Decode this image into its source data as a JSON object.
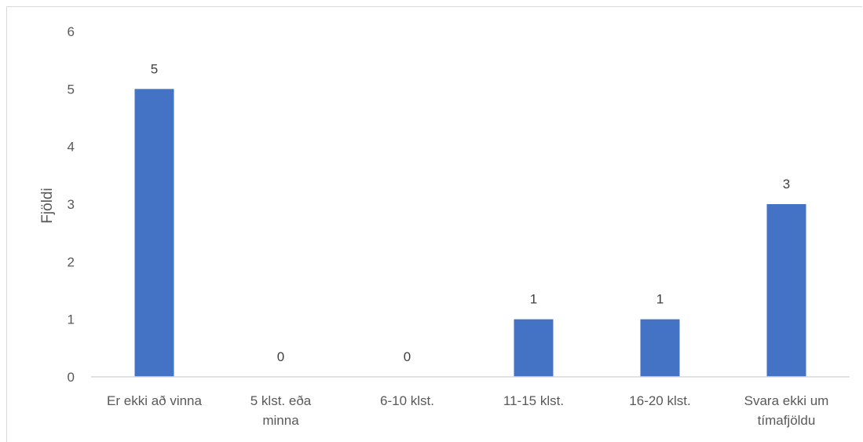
{
  "chart_data": {
    "type": "bar",
    "title": "",
    "xlabel": "",
    "ylabel": "Fjöldi",
    "ylim": [
      0,
      6
    ],
    "yticks": [
      0,
      1,
      2,
      3,
      4,
      5,
      6
    ],
    "grid": false,
    "legend": "none",
    "bar_color": "#4472c4",
    "categories": [
      [
        "Er ekki að vinna"
      ],
      [
        "5 klst. eða",
        "minna"
      ],
      [
        "6-10 klst."
      ],
      [
        "11-15 klst."
      ],
      [
        "16-20 klst."
      ],
      [
        "Svara ekki um",
        "tímafjöldu"
      ]
    ],
    "values": [
      5,
      0,
      0,
      1,
      1,
      3
    ],
    "data_labels": [
      "5",
      "0",
      "0",
      "1",
      "1",
      "3"
    ]
  }
}
